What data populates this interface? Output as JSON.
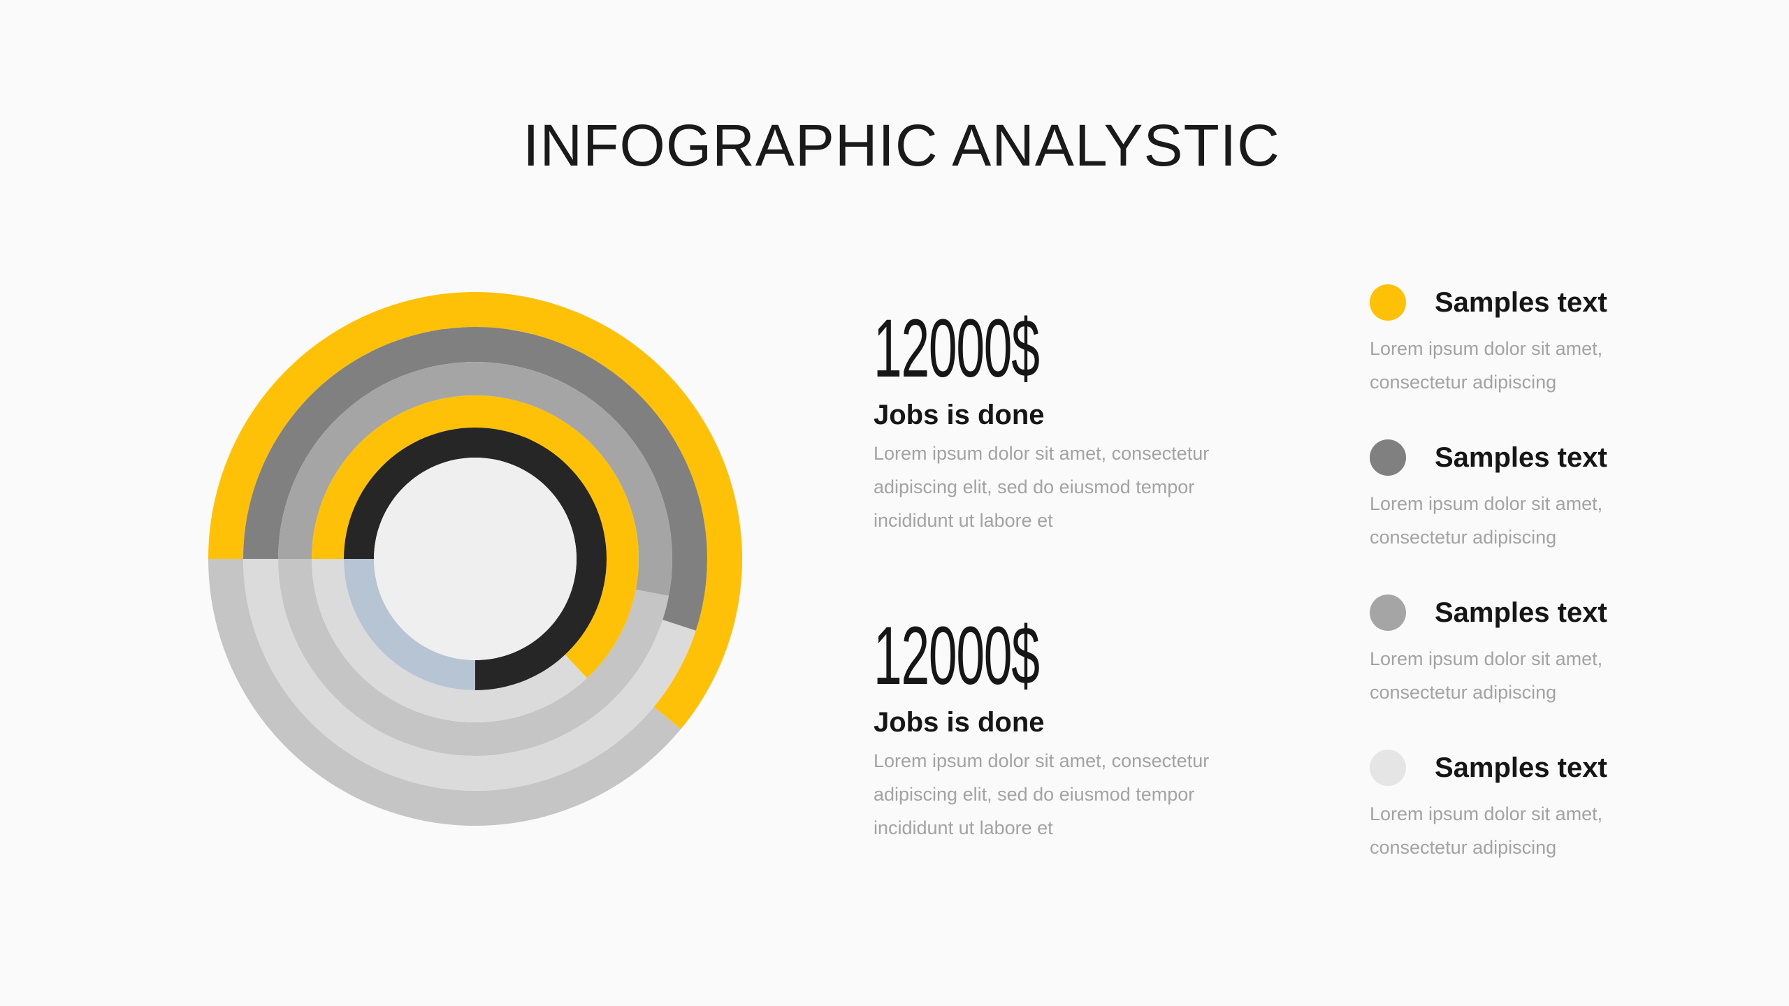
{
  "title": "INFOGRAPHIC ANALYSTIC",
  "chart_data": {
    "type": "radial_bar",
    "start": "left",
    "direction": "clockwise",
    "center_color": "#efefef",
    "rings": [
      {
        "value_pct": 61,
        "color": "#ffc107",
        "track_color": "#c6c5c5"
      },
      {
        "value_pct": 55,
        "color": "#808080",
        "track_color": "#dcdbdb"
      },
      {
        "value_pct": 53,
        "color": "#a5a5a5",
        "track_color": "#c6c5c5"
      },
      {
        "value_pct": 63,
        "color": "#ffc107",
        "track_color": "#dcdbdb"
      },
      {
        "value_pct": 75,
        "color": "#262626",
        "track_color": "#b7c4d4"
      }
    ]
  },
  "stats": [
    {
      "amount": "12000$",
      "label": "Jobs is done",
      "desc": [
        "Lorem ipsum dolor sit amet, consectetur",
        "adipiscing elit, sed do eiusmod tempor",
        "incididunt ut labore et"
      ]
    },
    {
      "amount": "12000$",
      "label": "Jobs is done",
      "desc": [
        "Lorem ipsum dolor sit amet, consectetur",
        "adipiscing elit, sed do eiusmod tempor",
        "incididunt ut labore et"
      ]
    }
  ],
  "legend": [
    {
      "color": "#ffc107",
      "title": "Samples text",
      "desc": [
        "Lorem ipsum dolor sit amet,",
        "consectetur adipiscing"
      ]
    },
    {
      "color": "#808080",
      "title": "Samples text",
      "desc": [
        "Lorem ipsum dolor sit amet,",
        "consectetur adipiscing"
      ]
    },
    {
      "color": "#a5a5a5",
      "title": "Samples text",
      "desc": [
        "Lorem ipsum dolor sit amet,",
        "consectetur adipiscing"
      ]
    },
    {
      "color": "#e6e5e6",
      "title": "Samples text",
      "desc": [
        "Lorem ipsum dolor sit amet,",
        "consectetur adipiscing"
      ]
    }
  ]
}
